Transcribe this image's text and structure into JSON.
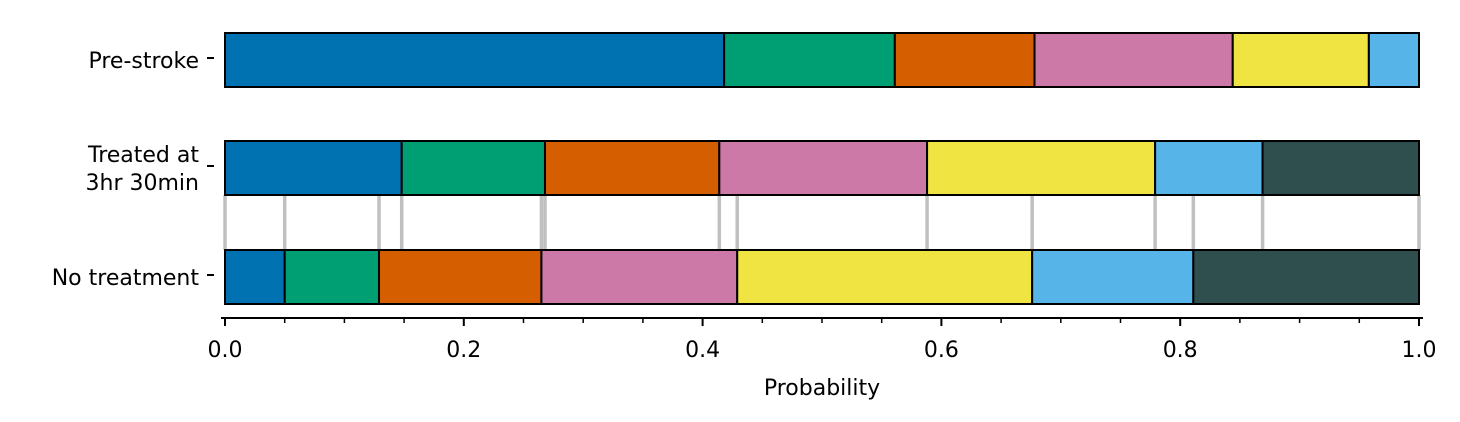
{
  "chart_data": {
    "type": "bar",
    "orientation": "horizontal",
    "stacked": true,
    "xlabel": "Probability",
    "xlim": [
      0,
      1
    ],
    "x_ticks": [
      {
        "value": 0.0,
        "label": "0.0"
      },
      {
        "value": 0.2,
        "label": "0.2"
      },
      {
        "value": 0.4,
        "label": "0.4"
      },
      {
        "value": 0.6,
        "label": "0.6"
      },
      {
        "value": 0.8,
        "label": "0.8"
      },
      {
        "value": 1.0,
        "label": "1.0"
      }
    ],
    "x_minor_ticks": [
      0.05,
      0.1,
      0.15,
      0.25,
      0.3,
      0.35,
      0.45,
      0.5,
      0.55,
      0.65,
      0.7,
      0.75,
      0.85,
      0.9,
      0.95
    ],
    "colors": [
      "#0072b2",
      "#009e73",
      "#d55e00",
      "#cc79a7",
      "#f0e442",
      "#56b4e9",
      "#2f4f4f"
    ],
    "edge_color": "#000000",
    "connector_color": "#c0c0c0",
    "categories": [
      {
        "label": [
          "Pre-stroke"
        ],
        "values": [
          0.418,
          0.143,
          0.117,
          0.166,
          0.114,
          0.042,
          0.0
        ]
      },
      {
        "label": [
          "Treated at",
          "3hr 30min"
        ],
        "values": [
          0.148,
          0.12,
          0.146,
          0.174,
          0.191,
          0.09,
          0.131
        ]
      },
      {
        "label": [
          "No treatment"
        ],
        "values": [
          0.05,
          0.079,
          0.136,
          0.164,
          0.247,
          0.135,
          0.189
        ]
      }
    ],
    "connectors_between": [
      1,
      2
    ],
    "grid": false,
    "legend": null
  }
}
